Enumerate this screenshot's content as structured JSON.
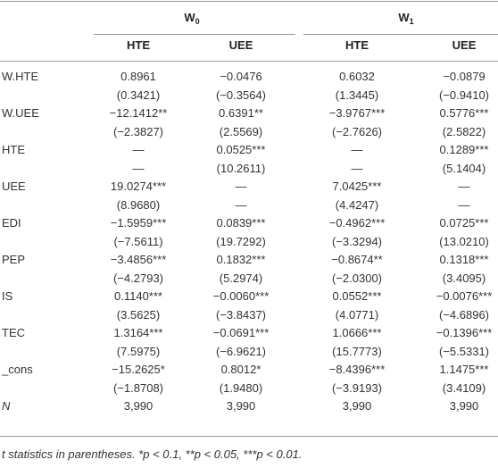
{
  "header": {
    "groups": [
      {
        "label": "W",
        "sub": "0"
      },
      {
        "label": "W",
        "sub": "1"
      }
    ],
    "columns": [
      "HTE",
      "UEE",
      "HTE",
      "UEE"
    ]
  },
  "rows": [
    {
      "label": "W.HTE",
      "values": [
        "0.8961",
        "−0.0476",
        "0.6032",
        "−0.0879"
      ],
      "stats": [
        "(0.3421)",
        "(−0.3564)",
        "(1.3445)",
        "(−0.9410)"
      ]
    },
    {
      "label": "W.UEE",
      "values": [
        "−12.1412**",
        "0.6391**",
        "−3.9767***",
        "0.5776***"
      ],
      "stats": [
        "(−2.3827)",
        "(2.5569)",
        "(−2.7626)",
        "(2.5822)"
      ]
    },
    {
      "label": "HTE",
      "values": [
        "—",
        "0.0525***",
        "—",
        "0.1289***"
      ],
      "stats": [
        "—",
        "(10.2611)",
        "—",
        "(5.1404)"
      ]
    },
    {
      "label": "UEE",
      "values": [
        "19.0274***",
        "—",
        "7.0425***",
        "—"
      ],
      "stats": [
        "(8.9680)",
        "—",
        "(4.4247)",
        "—"
      ]
    },
    {
      "label": "EDI",
      "values": [
        "−1.5959***",
        "0.0839***",
        "−0.4962***",
        "0.0725***"
      ],
      "stats": [
        "(−7.5611)",
        "(19.7292)",
        "(−3.3294)",
        "(13.0210)"
      ]
    },
    {
      "label": "PEP",
      "values": [
        "−3.4856***",
        "0.1832***",
        "−0.8674**",
        "0.1318***"
      ],
      "stats": [
        "(−4.2793)",
        "(5.2974)",
        "(−2.0300)",
        "(3.4095)"
      ]
    },
    {
      "label": "IS",
      "values": [
        "0.1140***",
        "−0.0060***",
        "0.0552***",
        "−0.0076***"
      ],
      "stats": [
        "(3.5625)",
        "(−3.8437)",
        "(4.0771)",
        "(−4.6896)"
      ]
    },
    {
      "label": "TEC",
      "values": [
        "1.3164***",
        "−0.0691***",
        "1.0666***",
        "−0.1396***"
      ],
      "stats": [
        "(7.5975)",
        "(−6.9621)",
        "(15.7773)",
        "(−5.5331)"
      ]
    },
    {
      "label": "_cons",
      "values": [
        "−15.2625*",
        "0.8012*",
        "−8.4396***",
        "1.1475***"
      ],
      "stats": [
        "(−1.8708)",
        "(1.9480)",
        "(−3.9193)",
        "(3.4109)"
      ]
    },
    {
      "label": "N",
      "values": [
        "3,990",
        "3,990",
        "3,990",
        "3,990"
      ]
    }
  ],
  "footnote": "t statistics in parentheses. *p < 0.1, **p < 0.05, ***p < 0.01."
}
